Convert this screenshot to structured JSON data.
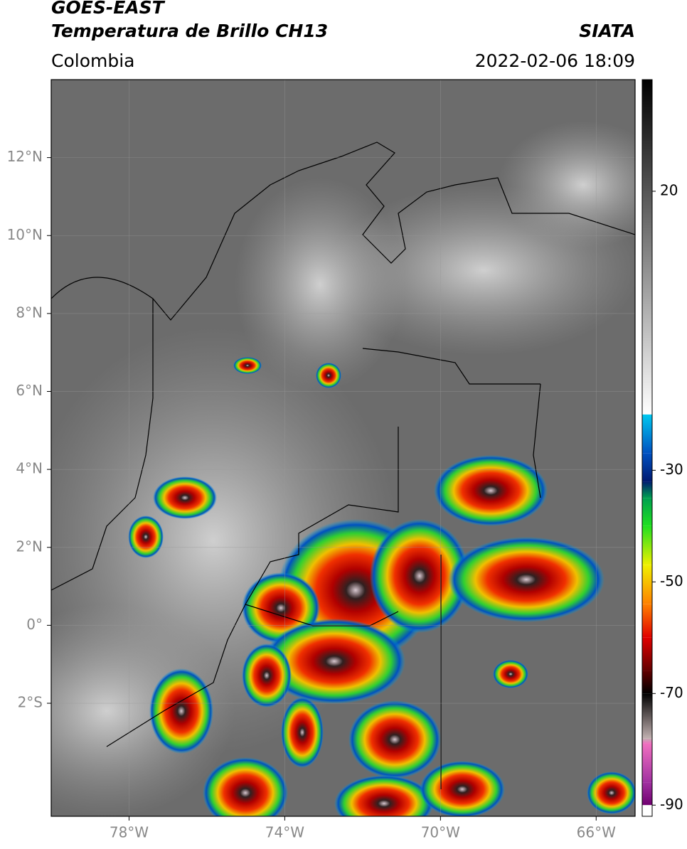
{
  "header": {
    "title": "GOES-EAST",
    "subtitle": "Temperatura de Brillo CH13",
    "source": "SIATA",
    "region": "Colombia",
    "datetime": "2022-02-06 18:09"
  },
  "map": {
    "xlim": [
      -80,
      -65
    ],
    "ylim": [
      -4.9,
      14
    ],
    "xticks": [
      {
        "value": -78,
        "label": "78°W"
      },
      {
        "value": -74,
        "label": "74°W"
      },
      {
        "value": -70,
        "label": "70°W"
      },
      {
        "value": -66,
        "label": "66°W"
      }
    ],
    "yticks": [
      {
        "value": 12,
        "label": "12°N"
      },
      {
        "value": 10,
        "label": "10°N"
      },
      {
        "value": 8,
        "label": "8°N"
      },
      {
        "value": 6,
        "label": "6°N"
      },
      {
        "value": 4,
        "label": "4°N"
      },
      {
        "value": 2,
        "label": "2°N"
      },
      {
        "value": 0,
        "label": "0°"
      },
      {
        "value": -2,
        "label": "2°S"
      }
    ],
    "grid": true
  },
  "colorbar": {
    "lim": [
      -92,
      40
    ],
    "ticks": [
      20,
      -30,
      -50,
      -70,
      -90
    ],
    "stops": [
      {
        "value": 40,
        "color": "#000000"
      },
      {
        "value": -20,
        "color": "#ffffff"
      },
      {
        "value": -20,
        "color": "#00c8f0"
      },
      {
        "value": -27,
        "color": "#0050c0"
      },
      {
        "value": -32,
        "color": "#001a70"
      },
      {
        "value": -35,
        "color": "#00a050"
      },
      {
        "value": -40,
        "color": "#20e020"
      },
      {
        "value": -47,
        "color": "#f0f000"
      },
      {
        "value": -54,
        "color": "#ff8000"
      },
      {
        "value": -60,
        "color": "#e00000"
      },
      {
        "value": -66,
        "color": "#600000"
      },
      {
        "value": -70,
        "color": "#000000"
      },
      {
        "value": -78,
        "color": "#c0b0b0"
      },
      {
        "value": -79,
        "color": "#f070c0"
      },
      {
        "value": -86,
        "color": "#a030a0"
      },
      {
        "value": -90,
        "color": "#700070"
      },
      {
        "value": -90,
        "color": "#ffffff"
      },
      {
        "value": -92,
        "color": "#ffffff"
      }
    ]
  }
}
